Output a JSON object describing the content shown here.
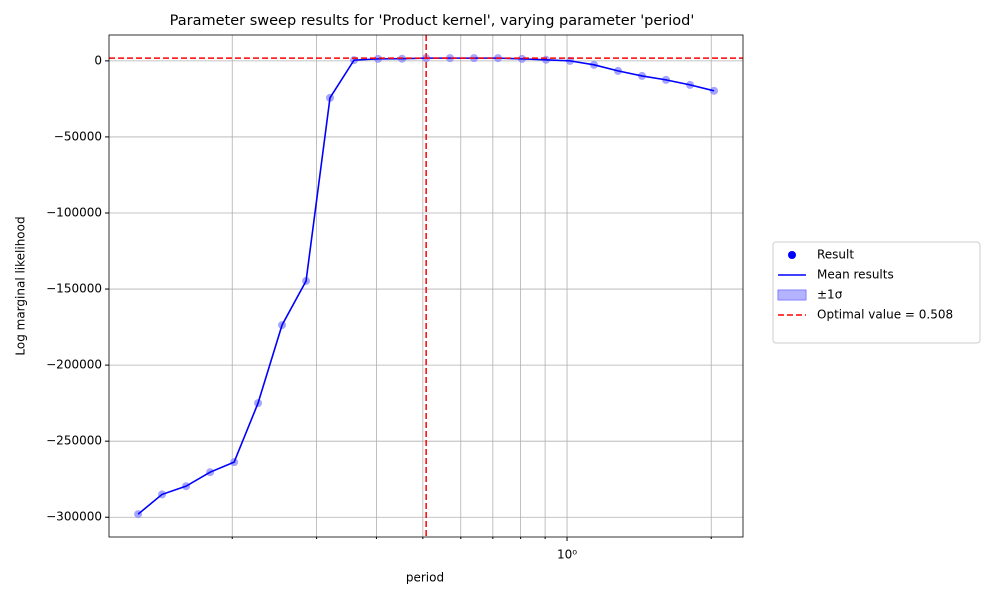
{
  "chart_data": {
    "type": "line",
    "title": "Parameter sweep results for 'Product kernel', varying parameter 'period'",
    "xlabel": "period",
    "ylabel": "Log marginal likelihood",
    "x": [
      0.1272,
      0.1427,
      0.1602,
      0.1798,
      0.2018,
      0.2264,
      0.2541,
      0.2852,
      0.32,
      0.3592,
      0.4031,
      0.4524,
      0.508,
      0.5697,
      0.6394,
      0.7176,
      0.8054,
      0.9039,
      1.0144,
      1.1385,
      1.2777,
      1.434,
      1.6093,
      1.8061,
      2.027
    ],
    "values": [
      -298000,
      -285000,
      -279600,
      -270400,
      -263800,
      -225000,
      -173700,
      -144700,
      -24300,
      500,
      1300,
      1400,
      1800,
      1800,
      1800,
      1800,
      1300,
      700,
      0,
      -2600,
      -6600,
      -9900,
      -12500,
      -15800,
      -19700
    ],
    "optimal_x": 0.508,
    "optimal_y": 1800,
    "xscale": "log",
    "xlim": [
      0.1106,
      2.33
    ],
    "xticks": [
      {
        "value": 1,
        "label": "10⁰"
      }
    ],
    "xminor_ticks": [
      0.2,
      0.3,
      0.4,
      0.5,
      0.6,
      0.7,
      0.8,
      0.9,
      2
    ],
    "ylim": [
      -313000,
      17000
    ],
    "yticks": [
      0,
      {
        "value": -50000,
        "label": "−50000"
      },
      {
        "value": -100000,
        "label": "−100000"
      },
      {
        "value": -150000,
        "label": "−150000"
      },
      {
        "value": -200000,
        "label": "−200000"
      },
      {
        "value": -250000,
        "label": "−250000"
      },
      {
        "value": -300000,
        "label": "−300000"
      }
    ],
    "grid": true,
    "marker_color": "#8080ff",
    "line_color": "#0000ff",
    "optimal_color": "#ff0000",
    "legend": [
      "Result",
      "Mean results",
      "±1σ",
      "Optimal value = 0.508"
    ],
    "legend_position": "right"
  }
}
